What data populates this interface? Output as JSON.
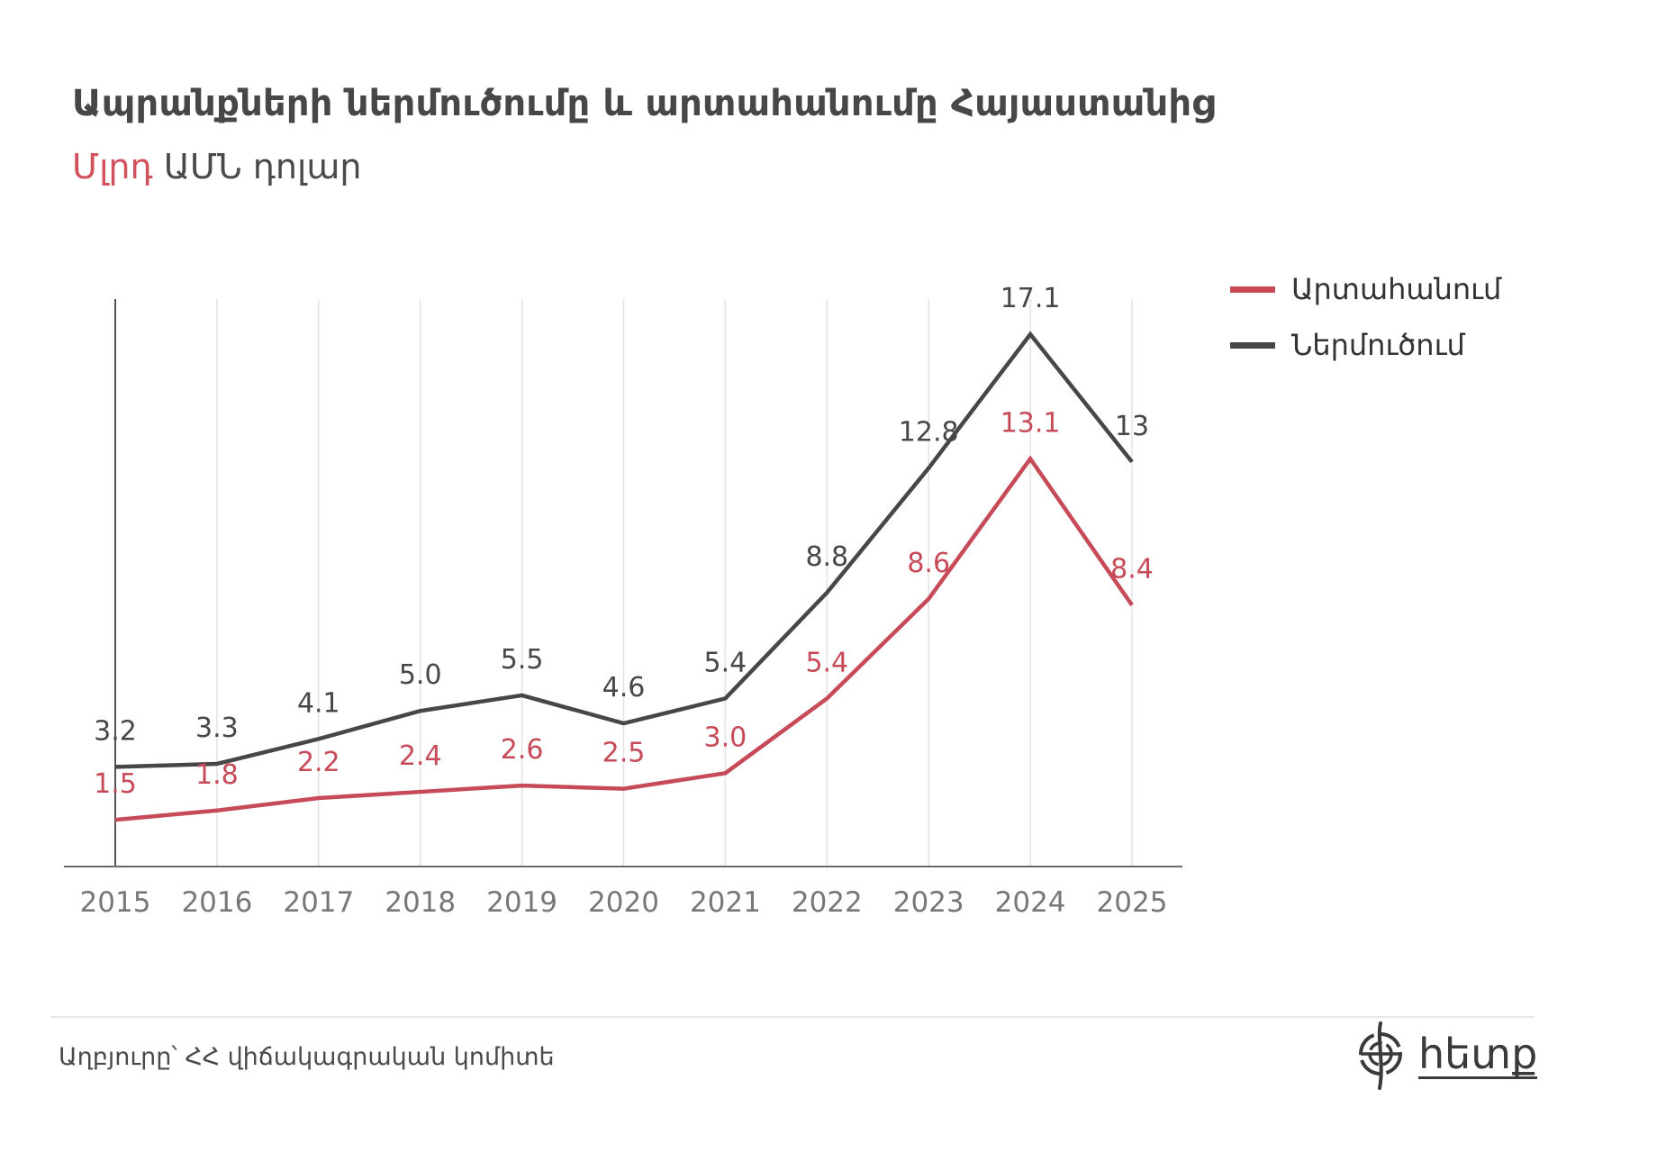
{
  "header": {
    "title": "Ապրանքների ներմուծումը և արտահանումը Հայաստանից",
    "subtitle_accent": "Մլրդ",
    "subtitle_rest": " ԱՄՆ դոլար"
  },
  "legend": [
    {
      "label": "Արտահանում",
      "color": "#c64a57"
    },
    {
      "label": "Ներմուծում",
      "color": "#474747"
    }
  ],
  "footer": {
    "source": "Աղբյուրը՝ ՀՀ վիճակագրական կոմիտե",
    "logo_text": "հետք",
    "logo_icon": "globe-logo-icon"
  },
  "colors": {
    "exports": "#c64a57",
    "imports": "#474747",
    "accent": "#d1525c",
    "grid": "#e3e3e3",
    "axis": "#6b6b6b",
    "tick_label": "#777777"
  },
  "chart_data": {
    "type": "line",
    "title": "Ապրանքների ներմուծումը և արտահանումը Հայաստանից",
    "subtitle": "Մլրդ ԱՄՆ դոլար",
    "xlabel": "",
    "ylabel": "",
    "categories": [
      "2015",
      "2016",
      "2017",
      "2018",
      "2019",
      "2020",
      "2021",
      "2022",
      "2023",
      "2024",
      "2025"
    ],
    "series": [
      {
        "name": "Արտահանում",
        "values": [
          1.5,
          1.8,
          2.2,
          2.4,
          2.6,
          2.5,
          3.0,
          5.4,
          8.6,
          13.1,
          8.4
        ],
        "labels": [
          "1.5",
          "1.8",
          "2.2",
          "2.4",
          "2.6",
          "2.5",
          "3.0",
          "5.4",
          "8.6",
          "13.1",
          "8.4"
        ]
      },
      {
        "name": "Ներմուծում",
        "values": [
          3.2,
          3.3,
          4.1,
          5.0,
          5.5,
          4.6,
          5.4,
          8.8,
          12.8,
          17.1,
          13
        ],
        "labels": [
          "3.2",
          "3.3",
          "4.1",
          "5.0",
          "5.5",
          "4.6",
          "5.4",
          "8.8",
          "12.8",
          "17.1",
          "13"
        ]
      }
    ],
    "ylim": [
      0,
      18
    ],
    "y_axis_ticks_shown": false,
    "grid": "vertical",
    "legend_position": "top-right"
  }
}
